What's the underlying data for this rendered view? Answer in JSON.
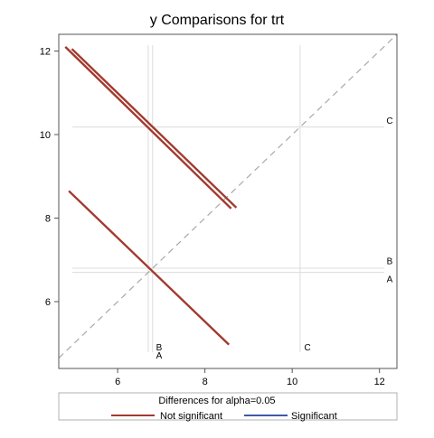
{
  "chart_data": {
    "type": "line",
    "title": "y Comparisons for trt",
    "xlabel": "",
    "ylabel": "",
    "xlim": [
      4.65,
      12.4
    ],
    "ylim": [
      4.4,
      12.4
    ],
    "x_ticks": [
      6,
      8,
      10,
      12
    ],
    "y_ticks": [
      6,
      8,
      10,
      12
    ],
    "grid": false,
    "legend": {
      "title": "Differences for alpha=0.05",
      "position": "bottom",
      "entries": [
        {
          "label": "Not significant",
          "color": "#a23a2e"
        },
        {
          "label": "Significant",
          "color": "#3f58a7"
        }
      ]
    },
    "means": [
      {
        "level": "A",
        "mean": 6.7
      },
      {
        "level": "B",
        "mean": 6.8
      },
      {
        "level": "C",
        "mean": 10.18
      }
    ],
    "reference_labels": {
      "bottom": [
        {
          "x": 6.95,
          "text": "B",
          "row": 0
        },
        {
          "x": 6.95,
          "text": "A",
          "row": 1
        },
        {
          "x": 10.35,
          "text": "C",
          "row": 0
        }
      ],
      "right": [
        {
          "y": 10.35,
          "text": "C"
        },
        {
          "y": 6.98,
          "text": "B"
        },
        {
          "y": 6.55,
          "text": "A"
        }
      ]
    },
    "series": [
      {
        "name": "Not significant",
        "color": "#a23a2e",
        "segments": [
          {
            "x": [
              4.8,
              8.6
            ],
            "y": [
              12.1,
              8.23
            ]
          },
          {
            "x": [
              4.95,
              8.72
            ],
            "y": [
              12.05,
              8.25
            ]
          },
          {
            "x": [
              4.88,
              8.55
            ],
            "y": [
              8.65,
              4.97
            ]
          }
        ]
      },
      {
        "name": "Significant",
        "color": "#3f58a7",
        "segments": []
      }
    ],
    "diagonal": {
      "color": "#a9a9a9"
    }
  },
  "colors": {
    "axis": "#555555",
    "reference_line": "#dcdcdc",
    "text": "#000000"
  }
}
